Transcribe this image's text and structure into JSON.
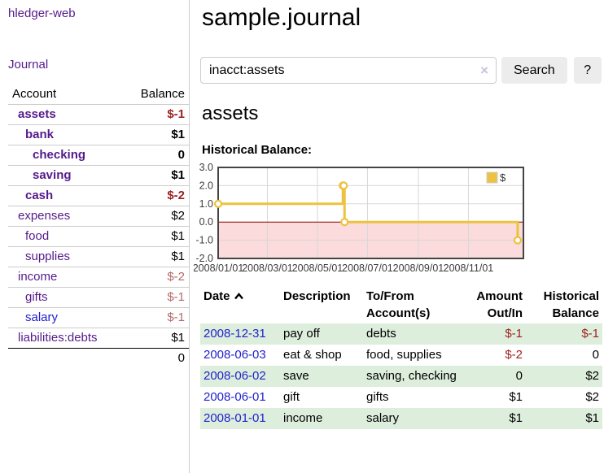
{
  "app": {
    "title": "hledger-web"
  },
  "colors": {
    "link_purple": "#551a8b",
    "link_blue": "#2222cc",
    "negative": "#9e1f1f",
    "negative_muted": "#b36a6a",
    "row_stripe_green": "#ddeedd",
    "button_gray": "#ececec",
    "chart_line_gold": "#edc240",
    "chart_negative_fill": "#fbdbdb",
    "chart_zero_line": "#8b0000"
  },
  "sidebar": {
    "journal_label": "Journal",
    "accounts": {
      "header_account": "Account",
      "header_balance": "Balance",
      "rows": [
        {
          "name": "assets",
          "indent": 1,
          "bold": true,
          "balance": "$-1",
          "neg": "strong"
        },
        {
          "name": "bank",
          "indent": 2,
          "bold": true,
          "balance": "$1"
        },
        {
          "name": "checking",
          "indent": 3,
          "bold": true,
          "balance": "0"
        },
        {
          "name": "saving",
          "indent": 3,
          "bold": true,
          "balance": "$1"
        },
        {
          "name": "cash",
          "indent": 2,
          "bold": true,
          "balance": "$-2",
          "neg": "strong"
        },
        {
          "name": "expenses",
          "indent": 1,
          "bold": false,
          "balance": "$2"
        },
        {
          "name": "food",
          "indent": 2,
          "bold": false,
          "balance": "$1"
        },
        {
          "name": "supplies",
          "indent": 2,
          "bold": false,
          "balance": "$1"
        },
        {
          "name": "income",
          "indent": 1,
          "bold": false,
          "balance": "$-2",
          "neg": "muted"
        },
        {
          "name": "gifts",
          "indent": 2,
          "bold": false,
          "balance": "$-1",
          "neg": "muted"
        },
        {
          "name": "salary",
          "indent": 2,
          "bold": false,
          "balance": "$-1",
          "neg": "muted",
          "link_color": "blue"
        },
        {
          "name": "liabilities:debts",
          "indent": 1,
          "bold": false,
          "balance": "$1"
        }
      ],
      "total": "0"
    }
  },
  "main": {
    "title": "sample.journal",
    "search": {
      "value": "inacct:assets",
      "clear_icon": "×",
      "button_label": "Search",
      "help_label": "?"
    },
    "section_title": "assets",
    "chart_label": "Historical Balance:"
  },
  "chart_data": {
    "type": "line",
    "title": "Historical Balance:",
    "series": [
      {
        "name": "$",
        "color": "#edc240",
        "step": true,
        "points": [
          [
            "2008-01-01",
            1
          ],
          [
            "2008-06-01",
            2
          ],
          [
            "2008-06-02",
            2
          ],
          [
            "2008-06-03",
            0
          ],
          [
            "2008-12-31",
            -1
          ]
        ]
      }
    ],
    "x_ticks": [
      "2008/01/01",
      "2008/03/01",
      "2008/05/01",
      "2008/07/01",
      "2008/09/01",
      "2008/11/01"
    ],
    "y_ticks": [
      "3.0",
      "2.0",
      "1.0",
      "0.0",
      "-1.0",
      "-2.0"
    ],
    "ylim": [
      -2,
      3
    ],
    "xlim": [
      "2008-01-01",
      "2009-01-07"
    ],
    "grid": true,
    "legend_position": "top-right",
    "legend": [
      "$"
    ]
  },
  "register": {
    "headers": [
      "Date",
      "Description",
      "To/From Account(s)",
      "Amount Out/In",
      "Historical Balance"
    ],
    "rows": [
      {
        "date": "2008-12-31",
        "description": "pay off",
        "accounts": "debts",
        "amount": "$-1",
        "amount_neg": true,
        "balance": "$-1",
        "balance_neg": true
      },
      {
        "date": "2008-06-03",
        "description": "eat & shop",
        "accounts": "food, supplies",
        "amount": "$-2",
        "amount_neg": true,
        "balance": "0",
        "balance_neg": false
      },
      {
        "date": "2008-06-02",
        "description": "save",
        "accounts": "saving, checking",
        "amount": "0",
        "amount_neg": false,
        "balance": "$2",
        "balance_neg": false
      },
      {
        "date": "2008-06-01",
        "description": "gift",
        "accounts": "gifts",
        "amount": "$1",
        "amount_neg": false,
        "balance": "$2",
        "balance_neg": false
      },
      {
        "date": "2008-01-01",
        "description": "income",
        "accounts": "salary",
        "amount": "$1",
        "amount_neg": false,
        "balance": "$1",
        "balance_neg": false
      }
    ]
  }
}
